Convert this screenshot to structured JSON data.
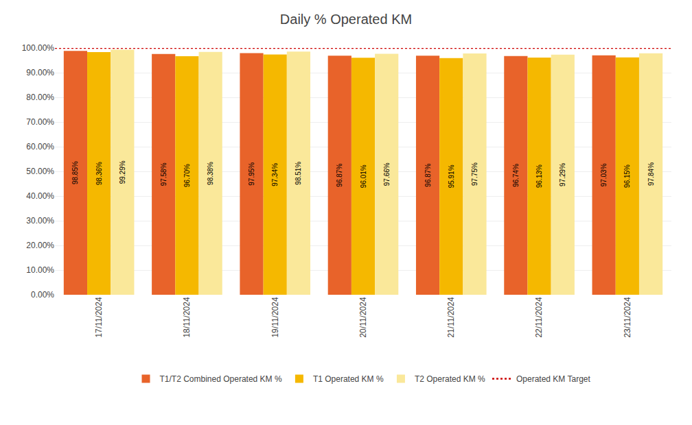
{
  "chart_data": {
    "type": "bar",
    "title": "Daily % Operated KM",
    "categories": [
      "17/11/2024",
      "18/11/2024",
      "19/11/2024",
      "20/11/2024",
      "21/11/2024",
      "22/11/2024",
      "23/11/2024"
    ],
    "series": [
      {
        "name": "T1/T2 Combined Operated KM %",
        "color": "#E8632A",
        "values": [
          98.85,
          97.58,
          97.95,
          96.87,
          96.87,
          96.74,
          97.03
        ],
        "value_labels": [
          "98.85%",
          "97.58%",
          "97.95%",
          "96.87%",
          "96.87%",
          "96.74%",
          "97.03%"
        ]
      },
      {
        "name": "T1 Operated KM %",
        "color": "#F5B800",
        "values": [
          98.36,
          96.7,
          97.34,
          96.01,
          95.91,
          96.13,
          96.15
        ],
        "value_labels": [
          "98.36%",
          "96.70%",
          "97.34%",
          "96.01%",
          "95.91%",
          "96.13%",
          "96.15%"
        ]
      },
      {
        "name": "T2 Operated KM %",
        "color": "#FAE89A",
        "values": [
          99.29,
          98.38,
          98.51,
          97.66,
          97.75,
          97.29,
          97.84
        ],
        "value_labels": [
          "99.29%",
          "98.38%",
          "98.51%",
          "97.66%",
          "97.75%",
          "97.29%",
          "97.84%"
        ]
      }
    ],
    "target": {
      "name": "Operated KM Target",
      "type": "line",
      "color": "#CC0000",
      "line_style": "dotted",
      "value": 100.0
    },
    "ylim": [
      0,
      100
    ],
    "yticks": [
      {
        "value": 0,
        "label": "0.00%"
      },
      {
        "value": 10,
        "label": "10.00%"
      },
      {
        "value": 20,
        "label": "20.00%"
      },
      {
        "value": 30,
        "label": "30.00%"
      },
      {
        "value": 40,
        "label": "40.00%"
      },
      {
        "value": 50,
        "label": "50.00%"
      },
      {
        "value": 60,
        "label": "60.00%"
      },
      {
        "value": 70,
        "label": "70.00%"
      },
      {
        "value": 80,
        "label": "80.00%"
      },
      {
        "value": 90,
        "label": "90.00%"
      },
      {
        "value": 100,
        "label": "100.00%"
      }
    ],
    "grid": true,
    "legend": "bottom",
    "data_labels": true
  }
}
